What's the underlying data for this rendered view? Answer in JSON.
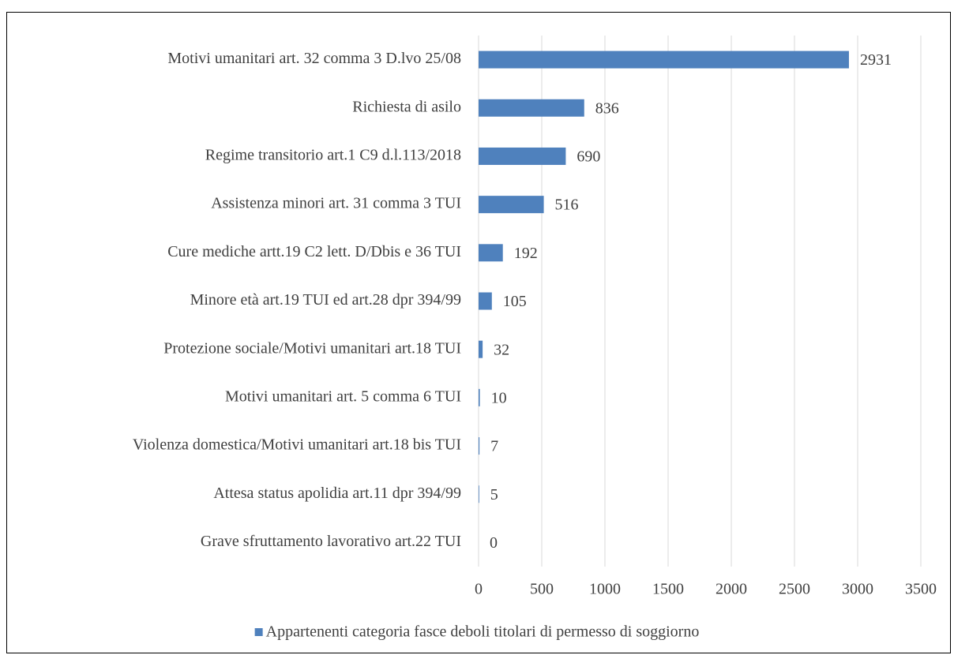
{
  "chart_data": {
    "type": "bar",
    "orientation": "horizontal",
    "categories": [
      "Motivi umanitari art. 32 comma 3 D.lvo 25/08",
      "Richiesta di asilo",
      "Regime transitorio art.1 C9 d.l.113/2018",
      "Assistenza minori art. 31 comma 3 TUI",
      "Cure mediche artt.19 C2 lett. D/Dbis e 36 TUI",
      "Minore età art.19 TUI ed art.28 dpr 394/99",
      "Protezione sociale/Motivi umanitari art.18 TUI",
      "Motivi umanitari art. 5 comma 6 TUI",
      "Violenza domestica/Motivi umanitari art.18 bis TUI",
      "Attesa status apolidia art.11 dpr 394/99",
      "Grave sfruttamento lavorativo art.22 TUI"
    ],
    "series": [
      {
        "name": "Appartenenti categoria fasce deboli titolari di permesso di soggiorno",
        "color": "#4f81bd",
        "values": [
          2931,
          836,
          690,
          516,
          192,
          105,
          32,
          10,
          7,
          5,
          0
        ]
      }
    ],
    "xlim": [
      0,
      3500
    ],
    "xticks": [
      0,
      500,
      1000,
      1500,
      2000,
      2500,
      3000,
      3500
    ],
    "grid": true,
    "legend": "bottom"
  }
}
